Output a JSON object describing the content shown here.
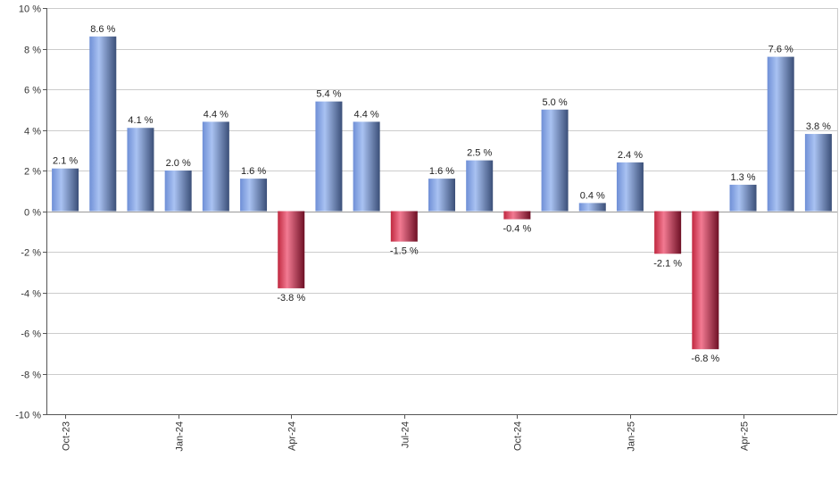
{
  "chart_data": {
    "type": "bar",
    "title": "",
    "xlabel": "",
    "ylabel": "",
    "ylim": [
      -10,
      10
    ],
    "y_ticks": [
      -10,
      -8,
      -6,
      -4,
      -2,
      0,
      2,
      4,
      6,
      8,
      10
    ],
    "y_tick_labels": [
      "-10 %",
      "-8 %",
      "-6 %",
      "-4 %",
      "-2 %",
      "0 %",
      "2 %",
      "4 %",
      "6 %",
      "8 %",
      "10 %"
    ],
    "x_tick_labels": [
      {
        "index": 0,
        "label": "Oct-23"
      },
      {
        "index": 3,
        "label": "Jan-24"
      },
      {
        "index": 6,
        "label": "Apr-24"
      },
      {
        "index": 9,
        "label": "Jul-24"
      },
      {
        "index": 12,
        "label": "Oct-24"
      },
      {
        "index": 15,
        "label": "Jan-25"
      },
      {
        "index": 18,
        "label": "Apr-25"
      }
    ],
    "values": [
      2.1,
      8.6,
      4.1,
      2.0,
      4.4,
      1.6,
      -3.8,
      5.4,
      4.4,
      -1.5,
      1.6,
      2.5,
      -0.4,
      5.0,
      0.4,
      2.4,
      -2.1,
      -6.8,
      1.3,
      7.6,
      3.8
    ],
    "labels": [
      "2.1 %",
      "8.6 %",
      "4.1 %",
      "2.0 %",
      "4.4 %",
      "1.6 %",
      "-3.8 %",
      "5.4 %",
      "4.4 %",
      "-1.5 %",
      "1.6 %",
      "2.5 %",
      "-0.4 %",
      "5.0 %",
      "0.4 %",
      "2.4 %",
      "-2.1 %",
      "-6.8 %",
      "1.3 %",
      "7.6 %",
      "3.8 %"
    ],
    "grid": true,
    "legend": "none",
    "colors": {
      "positive": "#7f9fe0",
      "positive_dark": "#3a4f7a",
      "negative": "#d2304f",
      "negative_dark": "#6e1025",
      "grid": "#cccccc",
      "axis": "#555555"
    }
  }
}
